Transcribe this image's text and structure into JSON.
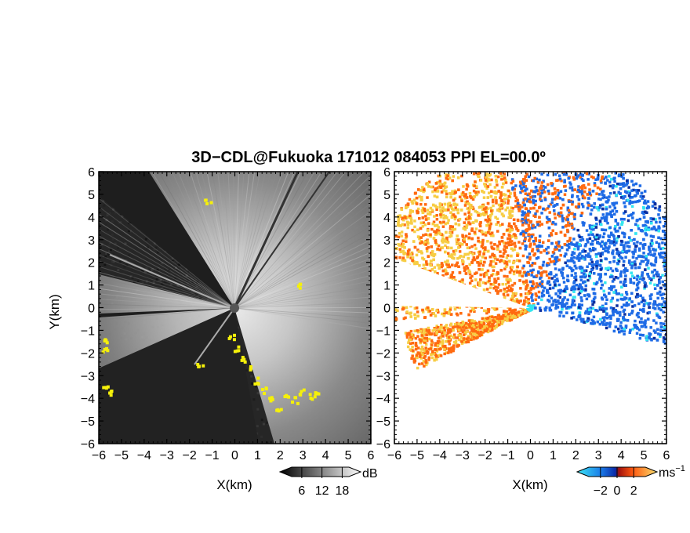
{
  "chart_data": [
    {
      "type": "heatmap",
      "panel": "reflectivity",
      "title": "3D−CDL@Fukuoka 171012 084053 PPI EL=00.0º",
      "xlabel": "X(km)",
      "ylabel": "Y(km)",
      "xlim": [
        -6,
        6
      ],
      "ylim": [
        -6,
        6
      ],
      "x_ticks": [
        "−6",
        "−5",
        "−4",
        "−3",
        "−2",
        "−1",
        "0",
        "1",
        "2",
        "3",
        "4",
        "5",
        "6"
      ],
      "y_ticks": [
        "6",
        "5",
        "4",
        "3",
        "2",
        "1",
        "0",
        "−1",
        "−2",
        "−3",
        "−4",
        "−5",
        "−6"
      ],
      "colorbar": {
        "unit": "dB",
        "ticks": [
          "6",
          "12",
          "18"
        ],
        "range": [
          0,
          24
        ],
        "colormap": "grayscale"
      },
      "colors": {
        "high": "#f2f2f2",
        "low": "#1e1e1e",
        "flag": "#f5f00a"
      }
    },
    {
      "type": "heatmap",
      "panel": "doppler velocity",
      "xlabel": "X(km)",
      "xlim": [
        -6,
        6
      ],
      "ylim": [
        -6,
        6
      ],
      "x_ticks": [
        "−6",
        "−5",
        "−4",
        "−3",
        "−2",
        "−1",
        "0",
        "1",
        "2",
        "3",
        "4",
        "5",
        "6"
      ],
      "y_ticks": [
        "6",
        "5",
        "4",
        "3",
        "2",
        "1",
        "0",
        "−1",
        "−2",
        "−3",
        "−4",
        "−5",
        "−6"
      ],
      "colorbar": {
        "unit": "ms",
        "unit_exponent": "−1",
        "ticks": [
          "−2",
          "0",
          "2"
        ],
        "range": [
          -4,
          4
        ],
        "colormap": "blue-red"
      },
      "colors": {
        "toward": "#1e6be6",
        "away": "#ff6a10",
        "far_away": "#f7cd44",
        "near_zero": "#33e6f0"
      }
    }
  ]
}
